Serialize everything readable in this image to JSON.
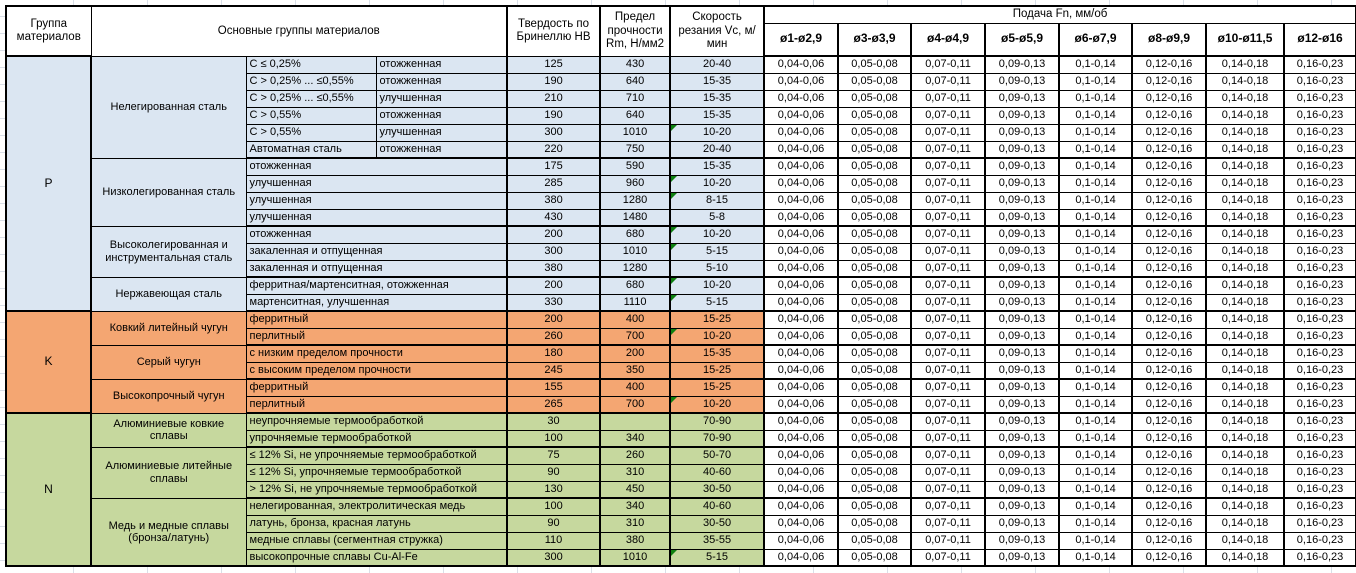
{
  "header": {
    "col_group": "Группа материалов",
    "col_main_groups": "Основные группы материалов",
    "col_hardness": "Твердость по Бринеллю HB",
    "col_strength": "Предел прочности Rm, Н/мм2",
    "col_speed": "Скорость резания Vc, м/мин",
    "feed_title": "Подача Fn, мм/об",
    "feed_columns": [
      "ø1-ø2,9",
      "ø3-ø3,9",
      "ø4-ø4,9",
      "ø5-ø5,9",
      "ø6-ø7,9",
      "ø8-ø9,9",
      "ø10-ø11,5",
      "ø12-ø16"
    ]
  },
  "colors": {
    "P": "#dbe6f2",
    "K": "#f4a672",
    "N": "#c6d89e",
    "comment_marker": "#0e8010",
    "border": "#000000"
  },
  "feed_values": [
    "0,04-0,06",
    "0,05-0,08",
    "0,07-0,11",
    "0,09-0,13",
    "0,1-0,14",
    "0,12-0,16",
    "0,14-0,18",
    "0,16-0,23"
  ],
  "groups": [
    {
      "code": "P",
      "color_key": "P",
      "subgroups": [
        {
          "name": "Нелегированная сталь",
          "rows": [
            {
              "label": "C ≤ 0,25%",
              "state": "отожженная",
              "hb": "125",
              "rm": "430",
              "vc": "20-40",
              "mark": false
            },
            {
              "label": "C > 0,25% ... ≤0,55%",
              "state": "отожженная",
              "hb": "190",
              "rm": "640",
              "vc": "15-35",
              "mark": false
            },
            {
              "label": "C > 0,25% ... ≤0,55%",
              "state": "улучшенная",
              "hb": "210",
              "rm": "710",
              "vc": "15-35",
              "mark": false
            },
            {
              "label": "C > 0,55%",
              "state": "отожженная",
              "hb": "190",
              "rm": "640",
              "vc": "15-35",
              "mark": false
            },
            {
              "label": "C > 0,55%",
              "state": "улучшенная",
              "hb": "300",
              "rm": "1010",
              "vc": "10-20",
              "mark": true
            },
            {
              "label": "Автоматная сталь",
              "state": "отожженная",
              "hb": "220",
              "rm": "750",
              "vc": "20-40",
              "mark": false
            }
          ]
        },
        {
          "name": "Низколегированная сталь",
          "rows": [
            {
              "label": "отожженная",
              "state": null,
              "hb": "175",
              "rm": "590",
              "vc": "15-35",
              "mark": false
            },
            {
              "label": "улучшенная",
              "state": null,
              "hb": "285",
              "rm": "960",
              "vc": "10-20",
              "mark": true
            },
            {
              "label": "улучшенная",
              "state": null,
              "hb": "380",
              "rm": "1280",
              "vc": "8-15",
              "mark": true
            },
            {
              "label": "улучшенная",
              "state": null,
              "hb": "430",
              "rm": "1480",
              "vc": "5-8",
              "mark": false
            }
          ]
        },
        {
          "name": "Высоколегированная и инструментальная сталь",
          "rows": [
            {
              "label": "отожженная",
              "state": null,
              "hb": "200",
              "rm": "680",
              "vc": "10-20",
              "mark": true
            },
            {
              "label": "закаленная и отпущенная",
              "state": null,
              "hb": "300",
              "rm": "1010",
              "vc": "5-15",
              "mark": true
            },
            {
              "label": "закаленная и отпущенная",
              "state": null,
              "hb": "380",
              "rm": "1280",
              "vc": "5-10",
              "mark": false
            }
          ]
        },
        {
          "name": "Нержавеющая сталь",
          "rows": [
            {
              "label": "ферритная/мартенситная, отожженная",
              "state": null,
              "hb": "200",
              "rm": "680",
              "vc": "10-20",
              "mark": true
            },
            {
              "label": "мартенситная, улучшенная",
              "state": null,
              "hb": "330",
              "rm": "1110",
              "vc": "5-15",
              "mark": true
            }
          ]
        }
      ]
    },
    {
      "code": "K",
      "color_key": "K",
      "subgroups": [
        {
          "name": "Ковкий литейный чугун",
          "rows": [
            {
              "label": "ферритный",
              "state": null,
              "hb": "200",
              "rm": "400",
              "vc": "15-25",
              "mark": false
            },
            {
              "label": "перлитный",
              "state": null,
              "hb": "260",
              "rm": "700",
              "vc": "10-20",
              "mark": true
            }
          ]
        },
        {
          "name": "Серый чугун",
          "rows": [
            {
              "label": "с низким пределом прочности",
              "state": null,
              "hb": "180",
              "rm": "200",
              "vc": "15-35",
              "mark": false
            },
            {
              "label": "с высоким пределом прочности",
              "state": null,
              "hb": "245",
              "rm": "350",
              "vc": "15-25",
              "mark": false
            }
          ]
        },
        {
          "name": "Высокопрочный чугун",
          "rows": [
            {
              "label": "ферритный",
              "state": null,
              "hb": "155",
              "rm": "400",
              "vc": "15-25",
              "mark": false
            },
            {
              "label": "перлитный",
              "state": null,
              "hb": "265",
              "rm": "700",
              "vc": "10-20",
              "mark": true
            }
          ]
        }
      ]
    },
    {
      "code": "N",
      "color_key": "N",
      "subgroups": [
        {
          "name": "Алюминиевые ковкие сплавы",
          "rows": [
            {
              "label": "неупрочняемые термообработкой",
              "state": null,
              "hb": "30",
              "rm": "",
              "vc": "70-90",
              "mark": false
            },
            {
              "label": "упрочняемые термообработкой",
              "state": null,
              "hb": "100",
              "rm": "340",
              "vc": "70-90",
              "mark": false
            }
          ]
        },
        {
          "name": "Алюминиевые литейные сплавы",
          "rows": [
            {
              "label": "≤ 12% Si, не упрочняемые термообработкой",
              "state": null,
              "hb": "75",
              "rm": "260",
              "vc": "50-70",
              "mark": false
            },
            {
              "label": "≤ 12% Si, упрочняемые термообработкой",
              "state": null,
              "hb": "90",
              "rm": "310",
              "vc": "40-60",
              "mark": false
            },
            {
              "label": "> 12% Si, не упрочняемые термообработкой",
              "state": null,
              "hb": "130",
              "rm": "450",
              "vc": "30-50",
              "mark": false
            }
          ]
        },
        {
          "name": "Медь и медные сплавы (бронза/латунь)",
          "rows": [
            {
              "label": "нелегированная, электролитическая медь",
              "state": null,
              "hb": "100",
              "rm": "340",
              "vc": "40-60",
              "mark": false
            },
            {
              "label": "латунь, бронза, красная латунь",
              "state": null,
              "hb": "90",
              "rm": "310",
              "vc": "30-50",
              "mark": false
            },
            {
              "label": "медные сплавы (сегментная стружка)",
              "state": null,
              "hb": "110",
              "rm": "380",
              "vc": "35-55",
              "mark": false
            },
            {
              "label": "высокопрочные сплавы Cu-Al-Fe",
              "state": null,
              "hb": "300",
              "rm": "1010",
              "vc": "5-15",
              "mark": true
            }
          ]
        }
      ]
    }
  ]
}
